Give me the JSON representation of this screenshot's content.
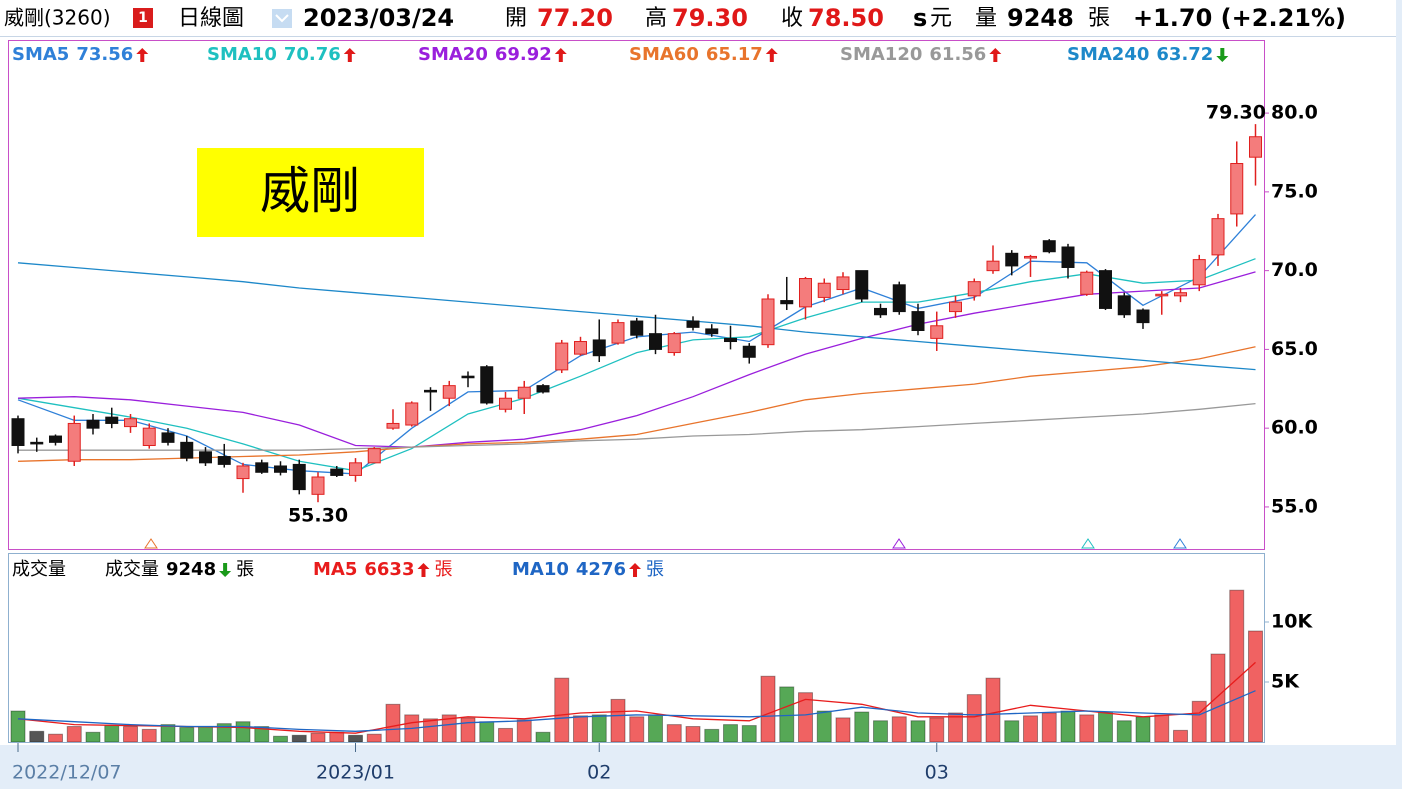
{
  "header": {
    "name": "威剛(3260)",
    "badge": "1",
    "period": "日線圖",
    "date": "2023/03/24",
    "open_label": "開",
    "open": "77.20",
    "high_label": "高",
    "high": "79.30",
    "close_label": "收",
    "close": "78.50",
    "s": "s",
    "currency": "元",
    "volume_label": "量",
    "volume": "9248",
    "volume_unit": "張",
    "change": "+1.70 (+2.21%)"
  },
  "logo_text": "威剛",
  "chart_data": [
    {
      "type": "candlestick",
      "up_color": "#f47c7c",
      "up_edge": "#e0201f",
      "down_color": "#111111",
      "open": [
        60.6,
        59.1,
        59.5,
        57.9,
        60.5,
        60.7,
        60.1,
        58.9,
        59.7,
        59.1,
        58.5,
        58.2,
        56.8,
        57.8,
        57.6,
        57.7,
        55.8,
        57.4,
        57.0,
        57.8,
        60.0,
        60.2,
        62.4,
        61.9,
        63.3,
        63.9,
        61.2,
        61.9,
        62.7,
        63.7,
        64.7,
        65.6,
        65.4,
        66.8,
        66.0,
        64.8,
        66.8,
        66.3,
        65.7,
        65.2,
        65.3,
        68.1,
        67.7,
        68.3,
        68.8,
        70.0,
        67.6,
        69.1,
        67.4,
        65.7,
        67.4,
        68.4,
        70.0,
        71.1,
        70.8,
        71.9,
        71.5,
        68.5,
        70.0,
        68.4,
        67.5,
        68.4,
        68.4,
        69.1,
        71.0,
        73.6,
        77.2
      ],
      "high": [
        60.8,
        59.4,
        59.6,
        60.8,
        60.9,
        61.3,
        60.9,
        60.3,
        60.0,
        59.5,
        58.8,
        59.0,
        57.8,
        58.0,
        57.9,
        58.0,
        57.2,
        57.6,
        58.1,
        58.8,
        61.2,
        61.7,
        62.6,
        63.0,
        63.6,
        64.0,
        62.3,
        63.0,
        62.8,
        65.6,
        65.8,
        66.9,
        66.9,
        67.0,
        67.2,
        66.1,
        67.1,
        66.6,
        66.5,
        65.4,
        68.5,
        69.6,
        69.6,
        69.5,
        69.9,
        70.0,
        67.9,
        69.3,
        67.9,
        67.4,
        68.4,
        69.5,
        71.6,
        71.3,
        71.0,
        72.0,
        71.7,
        70.0,
        70.1,
        68.6,
        67.6,
        68.7,
        68.9,
        71.0,
        73.6,
        78.2,
        79.3
      ],
      "low": [
        58.4,
        58.5,
        58.9,
        57.6,
        59.6,
        60.0,
        59.7,
        58.7,
        58.9,
        57.9,
        57.6,
        57.5,
        55.9,
        57.1,
        57.0,
        55.8,
        55.3,
        56.9,
        56.6,
        57.8,
        59.9,
        60.1,
        61.1,
        61.4,
        62.6,
        61.5,
        61.0,
        60.9,
        62.2,
        63.5,
        64.6,
        64.2,
        65.3,
        65.7,
        64.7,
        64.6,
        66.2,
        65.8,
        65.0,
        64.1,
        65.1,
        67.5,
        66.9,
        68.0,
        68.5,
        68.0,
        67.0,
        67.2,
        65.9,
        64.9,
        67.0,
        68.1,
        69.8,
        69.7,
        69.6,
        71.1,
        69.5,
        68.4,
        67.5,
        67.0,
        66.3,
        67.2,
        68.0,
        68.7,
        70.3,
        72.8,
        75.4
      ],
      "close": [
        58.9,
        59.0,
        59.1,
        60.3,
        60.0,
        60.3,
        60.6,
        60.0,
        59.1,
        58.1,
        57.8,
        57.7,
        57.6,
        57.2,
        57.2,
        56.1,
        56.9,
        57.0,
        57.8,
        58.7,
        60.3,
        61.6,
        62.3,
        62.7,
        63.2,
        61.6,
        61.9,
        62.6,
        62.3,
        65.4,
        65.5,
        64.6,
        66.7,
        65.9,
        65.0,
        66.0,
        66.4,
        66.0,
        65.5,
        64.5,
        68.2,
        67.9,
        69.5,
        69.2,
        69.6,
        68.2,
        67.2,
        67.4,
        66.2,
        66.5,
        68.0,
        69.3,
        70.6,
        70.3,
        70.9,
        71.2,
        70.2,
        69.9,
        67.6,
        67.2,
        66.7,
        68.5,
        68.6,
        70.7,
        73.3,
        76.8,
        78.5
      ],
      "high_label": "79.30",
      "low_label": "55.30",
      "ylim": [
        52.33,
        84.64
      ],
      "yticks": [
        {
          "value": 55,
          "label": "55.0"
        },
        {
          "value": 60,
          "label": "60.0"
        },
        {
          "value": 65,
          "label": "65.0"
        },
        {
          "value": 70,
          "label": "70.0"
        },
        {
          "value": 75,
          "label": "75.0"
        },
        {
          "value": 80,
          "label": "80.0"
        }
      ],
      "series": [
        {
          "name": "SMA5",
          "color": "#2f80d8",
          "trend": "up",
          "x": [
            0,
            3,
            6,
            9,
            12,
            15,
            18,
            21,
            24,
            27,
            30,
            33,
            36,
            39,
            42,
            45,
            48,
            51,
            54,
            57,
            60,
            63,
            66
          ],
          "values": [
            61.8,
            60.5,
            60.5,
            59.5,
            57.7,
            57.3,
            57.1,
            60.0,
            62.3,
            62.4,
            64.6,
            65.8,
            66.1,
            65.5,
            67.7,
            68.9,
            67.6,
            68.3,
            70.6,
            70.5,
            67.8,
            69.6,
            73.56
          ]
        },
        {
          "name": "SMA10",
          "color": "#1fc0c0",
          "trend": "up",
          "x": [
            0,
            3,
            6,
            9,
            12,
            15,
            18,
            21,
            24,
            27,
            30,
            33,
            36,
            39,
            42,
            45,
            48,
            51,
            54,
            57,
            60,
            63,
            66
          ],
          "values": [
            61.9,
            61.3,
            60.7,
            60.0,
            59.0,
            57.9,
            57.3,
            58.7,
            60.9,
            61.9,
            63.3,
            64.8,
            65.6,
            65.8,
            67.0,
            68.0,
            68.0,
            68.6,
            69.3,
            69.8,
            69.2,
            69.4,
            70.76
          ]
        },
        {
          "name": "SMA20",
          "color": "#9a1fdc",
          "trend": "up",
          "x": [
            0,
            3,
            6,
            9,
            12,
            15,
            18,
            21,
            24,
            27,
            30,
            33,
            36,
            39,
            42,
            45,
            48,
            51,
            54,
            57,
            60,
            63,
            66
          ],
          "values": [
            61.9,
            62.0,
            61.8,
            61.4,
            61.0,
            60.2,
            58.9,
            58.8,
            59.1,
            59.3,
            59.9,
            60.8,
            62.0,
            63.4,
            64.7,
            65.7,
            66.6,
            67.3,
            67.9,
            68.5,
            68.7,
            68.9,
            69.92
          ]
        },
        {
          "name": "SMA60",
          "color": "#e8742c",
          "trend": "up",
          "x": [
            0,
            3,
            6,
            9,
            12,
            15,
            18,
            21,
            24,
            27,
            30,
            33,
            36,
            39,
            42,
            45,
            48,
            51,
            54,
            57,
            60,
            63,
            66
          ],
          "values": [
            57.9,
            58.0,
            58.0,
            58.1,
            58.2,
            58.3,
            58.5,
            58.8,
            59.0,
            59.1,
            59.3,
            59.6,
            60.3,
            61.0,
            61.8,
            62.2,
            62.5,
            62.8,
            63.3,
            63.6,
            63.9,
            64.4,
            65.17
          ]
        },
        {
          "name": "SMA120",
          "color": "#999999",
          "trend": "up",
          "x": [
            0,
            3,
            6,
            9,
            12,
            15,
            18,
            21,
            24,
            27,
            30,
            33,
            36,
            39,
            42,
            45,
            48,
            51,
            54,
            57,
            60,
            63,
            66
          ],
          "values": [
            58.6,
            58.6,
            58.6,
            58.6,
            58.6,
            58.6,
            58.7,
            58.8,
            58.9,
            59.0,
            59.2,
            59.3,
            59.5,
            59.6,
            59.8,
            59.9,
            60.1,
            60.3,
            60.5,
            60.7,
            60.9,
            61.2,
            61.56
          ]
        },
        {
          "name": "SMA240",
          "color": "#1d88c9",
          "trend": "down",
          "x": [
            0,
            3,
            6,
            9,
            12,
            15,
            18,
            21,
            24,
            27,
            30,
            33,
            36,
            39,
            42,
            45,
            48,
            51,
            54,
            57,
            60,
            63,
            66
          ],
          "values": [
            70.5,
            70.2,
            69.9,
            69.6,
            69.3,
            68.9,
            68.6,
            68.3,
            68.0,
            67.7,
            67.4,
            67.1,
            66.8,
            66.5,
            66.1,
            65.8,
            65.5,
            65.2,
            64.9,
            64.6,
            64.3,
            64.0,
            63.72
          ]
        }
      ]
    },
    {
      "type": "bar",
      "title": "成交量",
      "name": "成交量",
      "trend": "down",
      "unit": "張",
      "categories": [
        "2022/12/07",
        null,
        null,
        null,
        null,
        null,
        null,
        null,
        null,
        null,
        null,
        null,
        null,
        null,
        null,
        null,
        null,
        null,
        "2023/01",
        null,
        null,
        null,
        null,
        null,
        null,
        null,
        null,
        null,
        null,
        null,
        null,
        "02",
        null,
        null,
        null,
        null,
        null,
        null,
        null,
        null,
        null,
        null,
        null,
        null,
        null,
        null,
        null,
        null,
        null,
        "03",
        null,
        null,
        null,
        null,
        null,
        null,
        null,
        null,
        null,
        null,
        null,
        null,
        null,
        null,
        null,
        null,
        null
      ],
      "values": [
        2580,
        890,
        650,
        1290,
        810,
        1370,
        1290,
        1050,
        1450,
        1210,
        1290,
        1530,
        1690,
        1290,
        480,
        560,
        730,
        810,
        560,
        650,
        3140,
        2260,
        1930,
        2260,
        2010,
        1690,
        1130,
        1850,
        810,
        5320,
        2180,
        2260,
        3550,
        2100,
        2260,
        1450,
        1290,
        1050,
        1450,
        1370,
        5480,
        4590,
        4110,
        2580,
        2010,
        2500,
        1770,
        2100,
        1770,
        2010,
        2420,
        3950,
        5320,
        1770,
        2180,
        2420,
        2580,
        2260,
        2500,
        1770,
        2100,
        2260,
        970,
        3390,
        7330,
        12650,
        9248
      ],
      "colors": [
        "#56a856",
        "#555555",
        "#f06262",
        "#f06262",
        "#56a856",
        "#56a856",
        "#f06262",
        "#f06262",
        "#56a856",
        "#56a856",
        "#56a856",
        "#56a856",
        "#56a856",
        "#56a856",
        "#56a856",
        "#555555",
        "#f06262",
        "#f06262",
        "#555555",
        "#f06262",
        "#f06262",
        "#f06262",
        "#f06262",
        "#f06262",
        "#f06262",
        "#56a856",
        "#f06262",
        "#f06262",
        "#56a856",
        "#f06262",
        "#f06262",
        "#56a856",
        "#f06262",
        "#f06262",
        "#56a856",
        "#f06262",
        "#f06262",
        "#56a856",
        "#56a856",
        "#56a856",
        "#f06262",
        "#56a856",
        "#f06262",
        "#56a856",
        "#f06262",
        "#56a856",
        "#56a856",
        "#f06262",
        "#56a856",
        "#f06262",
        "#f06262",
        "#f06262",
        "#f06262",
        "#56a856",
        "#f06262",
        "#f06262",
        "#56a856",
        "#f06262",
        "#56a856",
        "#56a856",
        "#56a856",
        "#f06262",
        "#f06262",
        "#f06262",
        "#f06262",
        "#f06262",
        "#f06262"
      ],
      "ylim": [
        0,
        15750
      ],
      "yticks": [
        {
          "value": 5000,
          "label": "5K"
        },
        {
          "value": 10000,
          "label": "10K"
        }
      ],
      "series": [
        {
          "name": "MA5",
          "color": "#e81c1c",
          "trend": "up",
          "x": [
            0,
            3,
            6,
            9,
            12,
            15,
            18,
            21,
            24,
            27,
            30,
            33,
            36,
            39,
            42,
            45,
            48,
            51,
            54,
            57,
            60,
            63,
            66
          ],
          "values": [
            1930,
            1450,
            1370,
            1290,
            1210,
            890,
            730,
            1610,
            2100,
            1930,
            2420,
            2580,
            1930,
            1770,
            3550,
            3140,
            2100,
            2100,
            3060,
            2580,
            2100,
            2420,
            6633
          ]
        },
        {
          "name": "MA10",
          "color": "#1f66c4",
          "trend": "up",
          "x": [
            0,
            3,
            6,
            9,
            12,
            15,
            18,
            21,
            24,
            27,
            30,
            33,
            36,
            39,
            42,
            45,
            48,
            51,
            54,
            57,
            60,
            63,
            66
          ],
          "values": [
            1930,
            1690,
            1450,
            1290,
            1290,
            1050,
            890,
            1130,
            1610,
            1770,
            2100,
            2260,
            2180,
            2100,
            2260,
            2900,
            2420,
            2260,
            2420,
            2580,
            2420,
            2260,
            4276
          ]
        }
      ]
    }
  ]
}
